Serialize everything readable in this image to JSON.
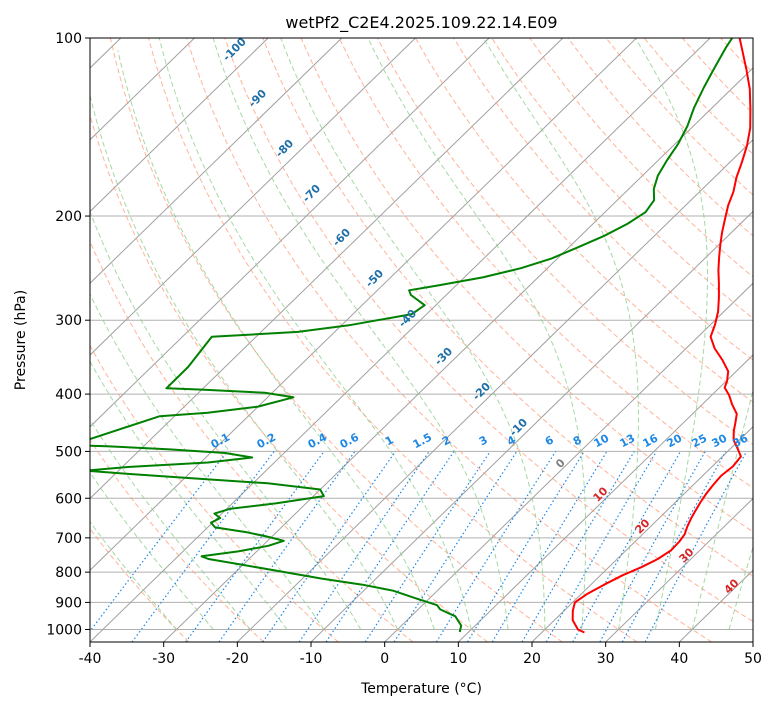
{
  "chart_data": {
    "type": "skew-t",
    "title": "wetPf2_C2E4.2025.109.22.14.E09",
    "xlabel": "Temperature (°C)",
    "ylabel": "Pressure (hPa)",
    "xlim": [
      -40,
      50
    ],
    "ylim": [
      1050,
      100
    ],
    "y_scale": "log",
    "x_ticks": [
      -40,
      -30,
      -20,
      -10,
      0,
      10,
      20,
      30,
      40,
      50
    ],
    "y_ticks": [
      100,
      200,
      300,
      400,
      500,
      600,
      700,
      800,
      900,
      1000
    ],
    "grid": true,
    "colors": {
      "temperature": "#ff0000",
      "dewpoint": "#008000",
      "dry_adiabat": "#ff9a75",
      "moist_adiabat": "#8fce8f",
      "mixing_ratio": "#1e88e5",
      "isotherm": "#a0a0a0",
      "pressure_grid": "#b0b0b0",
      "isotherm_label": "#1f6fa8",
      "moist_label": "#d62728",
      "zero_label": "#808080"
    },
    "series": [
      {
        "key": "temperature",
        "points": [
          [
            25.8,
            1012
          ],
          [
            24.5,
            1000
          ],
          [
            22.5,
            965
          ],
          [
            21.2,
            930
          ],
          [
            20.3,
            900
          ],
          [
            20.8,
            870
          ],
          [
            21.8,
            840
          ],
          [
            23,
            810
          ],
          [
            24.4,
            785
          ],
          [
            25.5,
            760
          ],
          [
            26.1,
            735
          ],
          [
            26,
            710
          ],
          [
            25.7,
            690
          ],
          [
            25,
            670
          ],
          [
            24.4,
            650
          ],
          [
            23.9,
            630
          ],
          [
            23.4,
            610
          ],
          [
            23,
            590
          ],
          [
            22.7,
            570
          ],
          [
            22.5,
            550
          ],
          [
            22.8,
            530
          ],
          [
            22.5,
            510
          ],
          [
            21,
            495
          ],
          [
            19.2,
            478
          ],
          [
            18,
            462
          ],
          [
            17.1,
            448
          ],
          [
            16,
            432
          ],
          [
            14,
            416
          ],
          [
            12.4,
            402
          ],
          [
            10.7,
            390
          ],
          [
            10.1,
            380
          ],
          [
            8.9,
            366
          ],
          [
            6.5,
            350
          ],
          [
            3.9,
            335
          ],
          [
            1.7,
            320
          ],
          [
            0.6,
            305
          ],
          [
            -0.8,
            290
          ],
          [
            -2.6,
            275
          ],
          [
            -4.6,
            260
          ],
          [
            -6.5,
            247
          ],
          [
            -8.2,
            235
          ],
          [
            -9.9,
            223
          ],
          [
            -11.3,
            213
          ],
          [
            -12.8,
            202
          ],
          [
            -14.2,
            192
          ],
          [
            -15.4,
            182
          ],
          [
            -17,
            172
          ],
          [
            -18.4,
            162
          ],
          [
            -20,
            152
          ],
          [
            -22,
            142
          ],
          [
            -24.6,
            132
          ],
          [
            -27.5,
            122
          ],
          [
            -30.7,
            113
          ],
          [
            -34.3,
            104
          ],
          [
            -36,
            100
          ]
        ]
      },
      {
        "key": "dewpoint",
        "points": [
          [
            8.8,
            1010
          ],
          [
            8.1,
            985
          ],
          [
            6,
            950
          ],
          [
            3,
            925
          ],
          [
            2,
            910
          ],
          [
            -2,
            885
          ],
          [
            -6,
            860
          ],
          [
            -11,
            840
          ],
          [
            -17.5,
            820
          ],
          [
            -24.8,
            795
          ],
          [
            -30.8,
            775
          ],
          [
            -35.5,
            760
          ],
          [
            -36.8,
            752
          ],
          [
            -32.5,
            738
          ],
          [
            -29.2,
            722
          ],
          [
            -27.8,
            708
          ],
          [
            -30.8,
            696
          ],
          [
            -34,
            685
          ],
          [
            -39,
            672
          ],
          [
            -40.2,
            660
          ],
          [
            -39.6,
            648
          ],
          [
            -41,
            637
          ],
          [
            -39.5,
            625
          ],
          [
            -34,
            612
          ],
          [
            -28.6,
            595
          ],
          [
            -30,
            580
          ],
          [
            -38,
            566
          ],
          [
            -49,
            555
          ],
          [
            -58,
            546
          ],
          [
            -64.5,
            539
          ],
          [
            -59,
            531
          ],
          [
            -49,
            522
          ],
          [
            -43.7,
            512
          ],
          [
            -48,
            503
          ],
          [
            -56,
            496
          ],
          [
            -65,
            490
          ],
          [
            -70,
            488
          ],
          [
            -62,
            436
          ],
          [
            -56,
            430
          ],
          [
            -50,
            420
          ],
          [
            -46.5,
            405
          ],
          [
            -51,
            398
          ],
          [
            -60,
            393
          ],
          [
            -65,
            391
          ],
          [
            -65,
            360
          ],
          [
            -66,
            320
          ],
          [
            -55,
            314
          ],
          [
            -49,
            306
          ],
          [
            -42,
            293
          ],
          [
            -41.5,
            283
          ],
          [
            -44.8,
            272
          ],
          [
            -45.7,
            267
          ],
          [
            -42.4,
            262
          ],
          [
            -37.5,
            254
          ],
          [
            -33.6,
            245
          ],
          [
            -30.8,
            236
          ],
          [
            -28.8,
            226
          ],
          [
            -26.8,
            216
          ],
          [
            -25.3,
            206
          ],
          [
            -24.5,
            197
          ],
          [
            -25,
            188
          ],
          [
            -26.6,
            180
          ],
          [
            -27.9,
            171
          ],
          [
            -28.8,
            161
          ],
          [
            -29.6,
            151
          ],
          [
            -30.8,
            141
          ],
          [
            -32.5,
            131
          ],
          [
            -34,
            121
          ],
          [
            -35.3,
            112
          ],
          [
            -36.5,
            104
          ],
          [
            -37,
            100
          ]
        ]
      }
    ],
    "isotherm_labels": [
      "-100",
      "-90",
      "-80",
      "-70",
      "-60",
      "-50",
      "-40",
      "-30",
      "-20",
      "-10"
    ],
    "mixing_ratio_labels": [
      "0.1",
      "0.2",
      "0.4",
      "0.6",
      "1",
      "1.5",
      "2",
      "3",
      "4",
      "6",
      "8",
      "10",
      "13",
      "16",
      "20",
      "25",
      "30",
      "36"
    ],
    "moist_adiabat_labels": [
      "0",
      "10",
      "20",
      "30",
      "40"
    ]
  }
}
